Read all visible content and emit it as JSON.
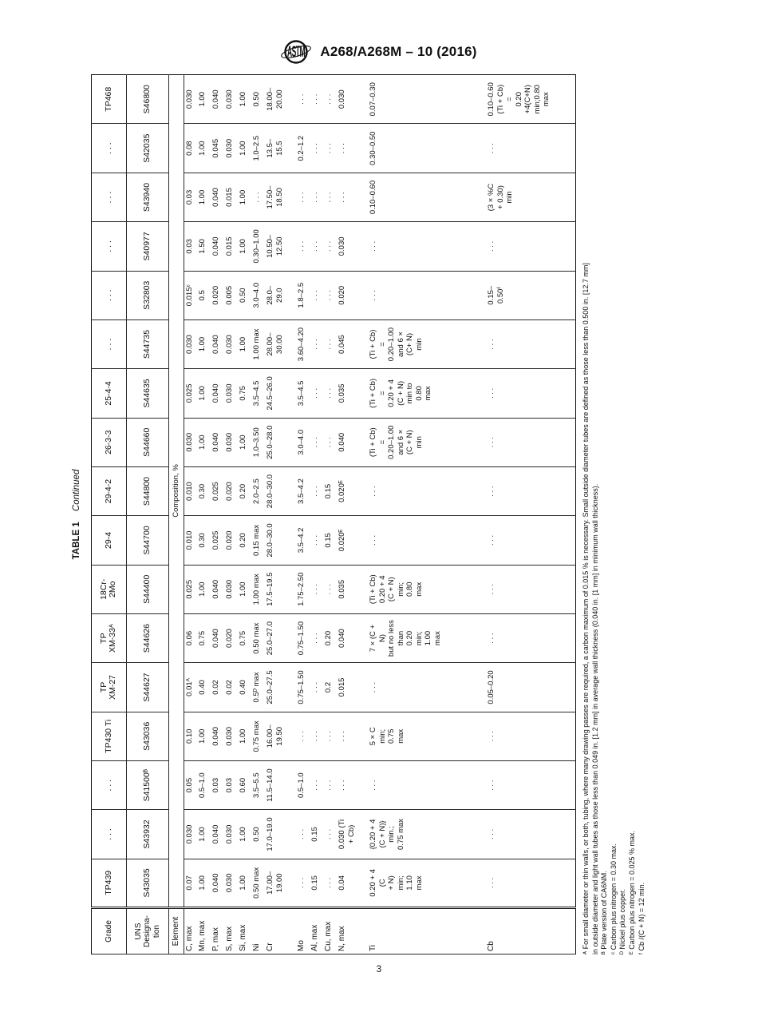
{
  "header": {
    "designation": "A268/A268M – 10 (2016)"
  },
  "table": {
    "title_bold": "TABLE 1",
    "title_italic": "Continued",
    "corner": {
      "grade": "Grade",
      "uns": "UNS\nDesigna-\ntion",
      "element": "Element"
    },
    "composition_header": "Composition, %",
    "element_labels": [
      "C, max",
      "Mn, max",
      "P, max",
      "S, max",
      "Si, max",
      "Ni",
      "Cr",
      "Mo",
      "Al, max",
      "Cu, max",
      "N, max",
      "Ti",
      "Cb"
    ],
    "columns": [
      {
        "grade": "TP439",
        "uns": "S43035",
        "values": [
          "0.07",
          "1.00",
          "0.040",
          "0.030",
          "1.00",
          "0.50 max",
          "17.00–\n19.00",
          ". . .",
          "0.15",
          ". . .",
          "0.04",
          "0.20 + 4\n(C\n+ N)\nmin;\n1.10\nmax",
          ". . ."
        ]
      },
      {
        "grade": ". . .",
        "uns": "S43932",
        "values": [
          "0.030",
          "1.00",
          "0.040",
          "0.030",
          "1.00",
          "0.50",
          "17.0–19.0",
          ". . .",
          "0.15",
          ". . .",
          "0.030 (Ti\n+ Cb)",
          "{0.20 + 4\n(C + N)}\nmin.;\n0.75 max",
          ". . ."
        ]
      },
      {
        "grade": ". . .",
        "uns": "S41500ᴮ",
        "values": [
          "0.05",
          "0.5–1.0",
          "0.03",
          "0.03",
          "0.60",
          "3.5–5.5",
          "11.5–14.0",
          "0.5–1.0",
          ". . .",
          ". . .",
          ". . .",
          ". . .",
          ". . ."
        ]
      },
      {
        "grade": "TP430 Ti",
        "uns": "S43036",
        "values": [
          "0.10",
          "1.00",
          "0.040",
          "0.030",
          "1.00",
          "0.75 max",
          "16.00–\n19.50",
          ". . .",
          ". . .",
          ". . .",
          ". . .",
          "5 × C\nmin;\n0.75\nmax",
          ". . ."
        ]
      },
      {
        "grade": "TP\nXM-27",
        "uns": "S44627",
        "values": [
          "0.01ᴬ",
          "0.40",
          "0.02",
          "0.02",
          "0.40",
          "0.5ᴰ max",
          "25.0–27.5",
          "0.75–1.50",
          ". . .",
          "0.2",
          "0.015",
          ". . .",
          "0.05–0.20"
        ]
      },
      {
        "grade": "TP\nXM-33ᴬ",
        "uns": "S44626",
        "values": [
          "0.06",
          "0.75",
          "0.040",
          "0.020",
          "0.75",
          "0.50 max",
          "25.0–27.0",
          "0.75–1.50",
          ". . .",
          "0.20",
          "0.040",
          "7 × (C +\nN)\nbut no less\nthan\n0.20\nmin;\n1.00\nmax",
          ". . ."
        ]
      },
      {
        "grade": "18Cr-\n2Mo",
        "uns": "S44400",
        "values": [
          "0.025",
          "1.00",
          "0.040",
          "0.030",
          "1.00",
          "1.00 max",
          "17.5–19.5",
          "1.75–2.50",
          ". . .",
          ". . .",
          "0.035",
          "(Ti + Cb)\n0.20 + 4\n(C + N)\nmin;\n0.80\nmax",
          ". . ."
        ]
      },
      {
        "grade": "29-4",
        "uns": "S44700",
        "values": [
          "0.010",
          "0.30",
          "0.025",
          "0.020",
          "0.20",
          "0.15 max",
          "28.0–30.0",
          "3.5–4.2",
          ". . .",
          "0.15",
          "0.020ᴱ",
          ". . .",
          ". . ."
        ]
      },
      {
        "grade": "29-4-2",
        "uns": "S44800",
        "values": [
          "0.010",
          "0.30",
          "0.025",
          "0.020",
          "0.20",
          "2.0–2.5",
          "28.0–30.0",
          "3.5–4.2",
          ". . .",
          "0.15",
          "0.020ᴱ",
          ". . .",
          ". . ."
        ]
      },
      {
        "grade": "26-3-3",
        "uns": "S44660",
        "values": [
          "0.030",
          "1.00",
          "0.040",
          "0.030",
          "1.00",
          "1.0–3.50",
          "25.0–28.0",
          "3.0–4.0",
          ". . .",
          ". . .",
          "0.040",
          "(Ti + Cb)\n=\n0.20–1.00\nand 6 ×\n(C + N)\nmin",
          ". . ."
        ]
      },
      {
        "grade": "25-4-4",
        "uns": "S44635",
        "values": [
          "0.025",
          "1.00",
          "0.040",
          "0.030",
          "0.75",
          "3.5–4.5",
          "24.5–26.0",
          "3.5–4.5",
          ". . .",
          ". . .",
          "0.035",
          "(Ti + Cb)\n=\n0.20 + 4\n(C + N)\nmin to\n0.80\nmax",
          ". . ."
        ]
      },
      {
        "grade": ". . .",
        "uns": "S44735",
        "values": [
          "0.030",
          "1.00",
          "0.040",
          "0.030",
          "1.00",
          "1.00 max",
          "28.00–\n30.00",
          "3.60–4.20",
          ". . .",
          ". . .",
          "0.045",
          "(Ti + Cb)\n=\n0.20–1.00\nand 6 ×\n(C+ N)\nmin",
          ". . ."
        ]
      },
      {
        "grade": ". . .",
        "uns": "S32803",
        "values": [
          "0.015ᶜ",
          "0.5",
          "0.020",
          "0.005",
          "0.50",
          "3.0–4.0",
          "28.0–\n29.0",
          "1.8–2.5",
          ". . .",
          ". . .",
          "0.020",
          ". . .",
          "0.15–\n0.50ᶠ"
        ]
      },
      {
        "grade": ". . .",
        "uns": "S40977",
        "values": [
          "0.03",
          "1.50",
          "0.040",
          "0.015",
          "1.00",
          "0.30–1.00",
          "10.50–\n12.50",
          ". . .",
          ". . .",
          ". . .",
          "0.030",
          ". . .",
          ". . ."
        ]
      },
      {
        "grade": ". . .",
        "uns": "S43940",
        "values": [
          "0.03",
          "1.00",
          "0.040",
          "0.015",
          "1.00",
          ". . .",
          "17.50–\n18.50",
          ". . .",
          ". . .",
          ". . .",
          ". . .",
          "0.10–0.60",
          "(3 × %C\n+ 0.30)\nmin"
        ]
      },
      {
        "grade": ". . .",
        "uns": "S42035",
        "values": [
          "0.08",
          "1.00",
          "0.045",
          "0.030",
          "1.00",
          "1.0–2.5",
          "13.5–\n15.5",
          "0.2–1.2",
          ". . .",
          ". . .",
          ". . .",
          "0.30–0.50",
          ". . ."
        ]
      },
      {
        "grade": "TP468",
        "uns": "S46800",
        "values": [
          "0.030",
          "1.00",
          "0.040",
          "0.030",
          "1.00",
          "0.50",
          "18.00–\n20.00",
          ". . .",
          ". . .",
          ". . .",
          "0.030",
          "0.07–0.30",
          "0.10–0.60\n(Ti + Cb)\n=\n0.20\n+4(C+N)\nmin;0.80\nmax"
        ]
      }
    ]
  },
  "footnotes": [
    "ᴬ For small diameter or thin walls, or both, tubing, where many drawing passes are required, a carbon maximum of 0.015 % is necessary. Small outside diameter tubes are defined as those less than 0.500 in. [12.7 mm]",
    "in outside diameter and light wall tubes as those less than 0.049 in. [1.2 mm] in average wall thickness (0.040 in. [1 mm] in minimum wall thickness).",
    "ᴮ Plate version of CA6NM.",
    "ᶜ Carbon plus nitrogen = 0.30 max.",
    "ᴰ Nickel plus copper.",
    "ᴱ Carbon plus nitrogen = 0.025 % max.",
    "ᶠ Cb /(C + N) = 12 min."
  ],
  "page_number": "3"
}
